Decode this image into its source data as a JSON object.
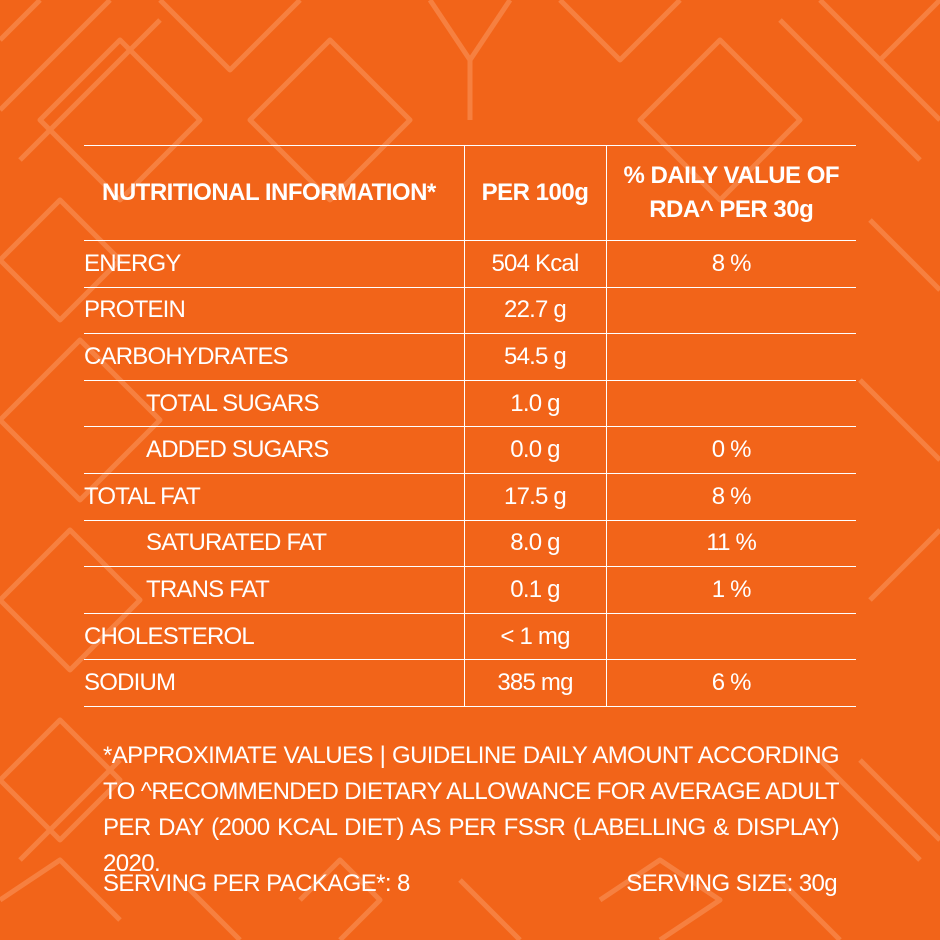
{
  "colors": {
    "background": "#f26419",
    "pattern": "#f88a4e",
    "text": "#ffffff"
  },
  "table": {
    "headers": {
      "col1": "NUTRITIONAL INFORMATION*",
      "col2": "PER 100g",
      "col3_line1": "% DAILY VALUE OF",
      "col3_line2": "RDA^ PER 30g"
    },
    "rows": [
      {
        "name": "ENERGY",
        "per100": "504 Kcal",
        "dv": "8 %"
      },
      {
        "name": "PROTEIN",
        "per100": "22.7 g",
        "dv": ""
      },
      {
        "name": "CARBOHYDRATES",
        "per100": "54.5 g",
        "dv": ""
      },
      {
        "name": "TOTAL SUGARS",
        "per100": "1.0 g",
        "dv": ""
      },
      {
        "name": "ADDED SUGARS",
        "per100": "0.0 g",
        "dv": "0 %"
      },
      {
        "name": "TOTAL FAT",
        "per100": "17.5 g",
        "dv": "8 %"
      },
      {
        "name": "SATURATED FAT",
        "per100": "8.0 g",
        "dv": "11 %"
      },
      {
        "name": "TRANS FAT",
        "per100": "0.1 g",
        "dv": "1 %"
      },
      {
        "name": "CHOLESTEROL",
        "per100": "< 1 mg",
        "dv": ""
      },
      {
        "name": "SODIUM",
        "per100": "385 mg",
        "dv": "6 %"
      }
    ]
  },
  "footnote": "*APPROXIMATE VALUES | GUIDELINE DAILY AMOUNT ACCORDING TO ^RECOMMENDED DIETARY ALLOWANCE FOR AVERAGE ADULT PER DAY (2000 KCAL DIET) AS PER FSSR (LABELLING & DISPLAY) 2020.",
  "serving": {
    "per_package": "SERVING PER PACKAGE*: 8",
    "size": "SERVING SIZE: 30g"
  }
}
